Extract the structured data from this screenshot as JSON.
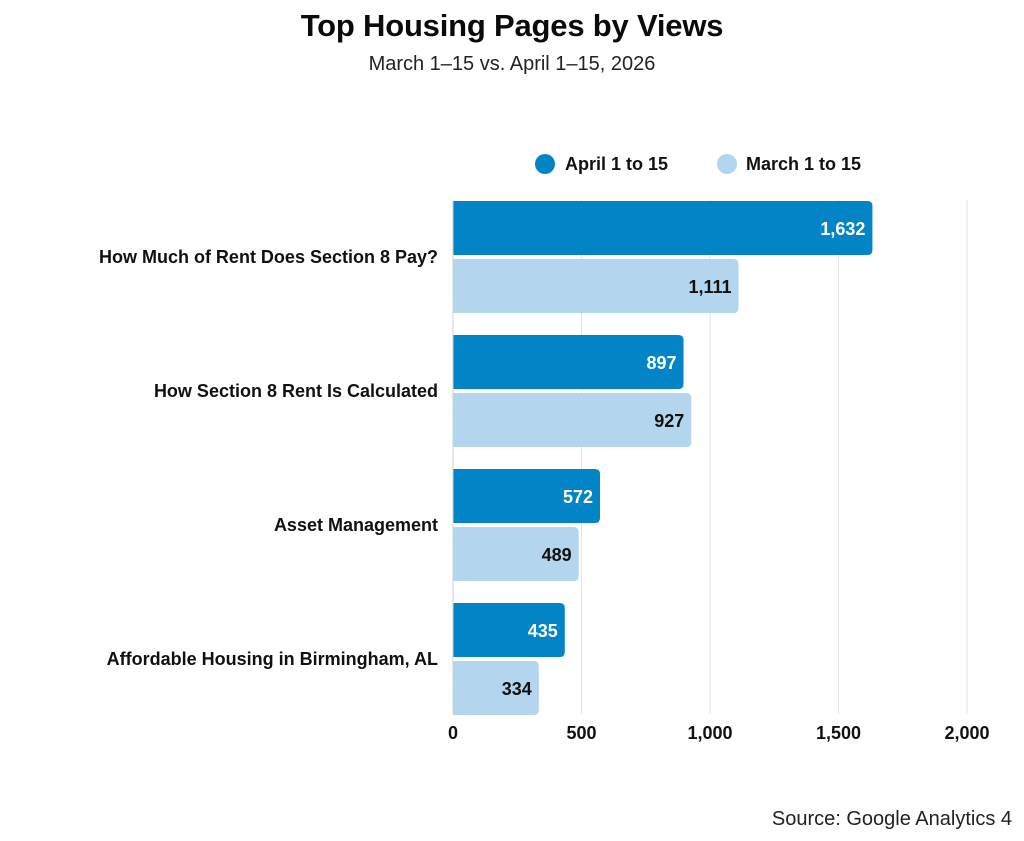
{
  "chart_data": {
    "type": "bar",
    "orientation": "horizontal",
    "title": "Top Housing Pages by Views",
    "subtitle": "March 1–15 vs. April 1–15, 2026",
    "source": "Source: Google Analytics 4",
    "categories": [
      "How Much of Rent Does Section 8 Pay?",
      "How Section 8 Rent Is Calculated",
      "Asset Management",
      "Affordable Housing in Birmingham, AL"
    ],
    "series": [
      {
        "name": "April 1 to 15",
        "color": "#0284c7",
        "label_color": "#ffffff",
        "values": [
          1632,
          897,
          572,
          435
        ],
        "value_labels": [
          "1,632",
          "897",
          "572",
          "435"
        ]
      },
      {
        "name": "March 1 to 15",
        "color": "#b3d5ed",
        "label_color": "#111111",
        "values": [
          1111,
          927,
          489,
          334
        ],
        "value_labels": [
          "1,111",
          "927",
          "489",
          "334"
        ]
      }
    ],
    "xlim": [
      0,
      2000
    ],
    "xticks": [
      0,
      500,
      1000,
      1500,
      2000
    ],
    "xtick_labels": [
      "0",
      "500",
      "1,000",
      "1,500",
      "2,000"
    ],
    "grid": true,
    "legend_position": "top-right"
  }
}
